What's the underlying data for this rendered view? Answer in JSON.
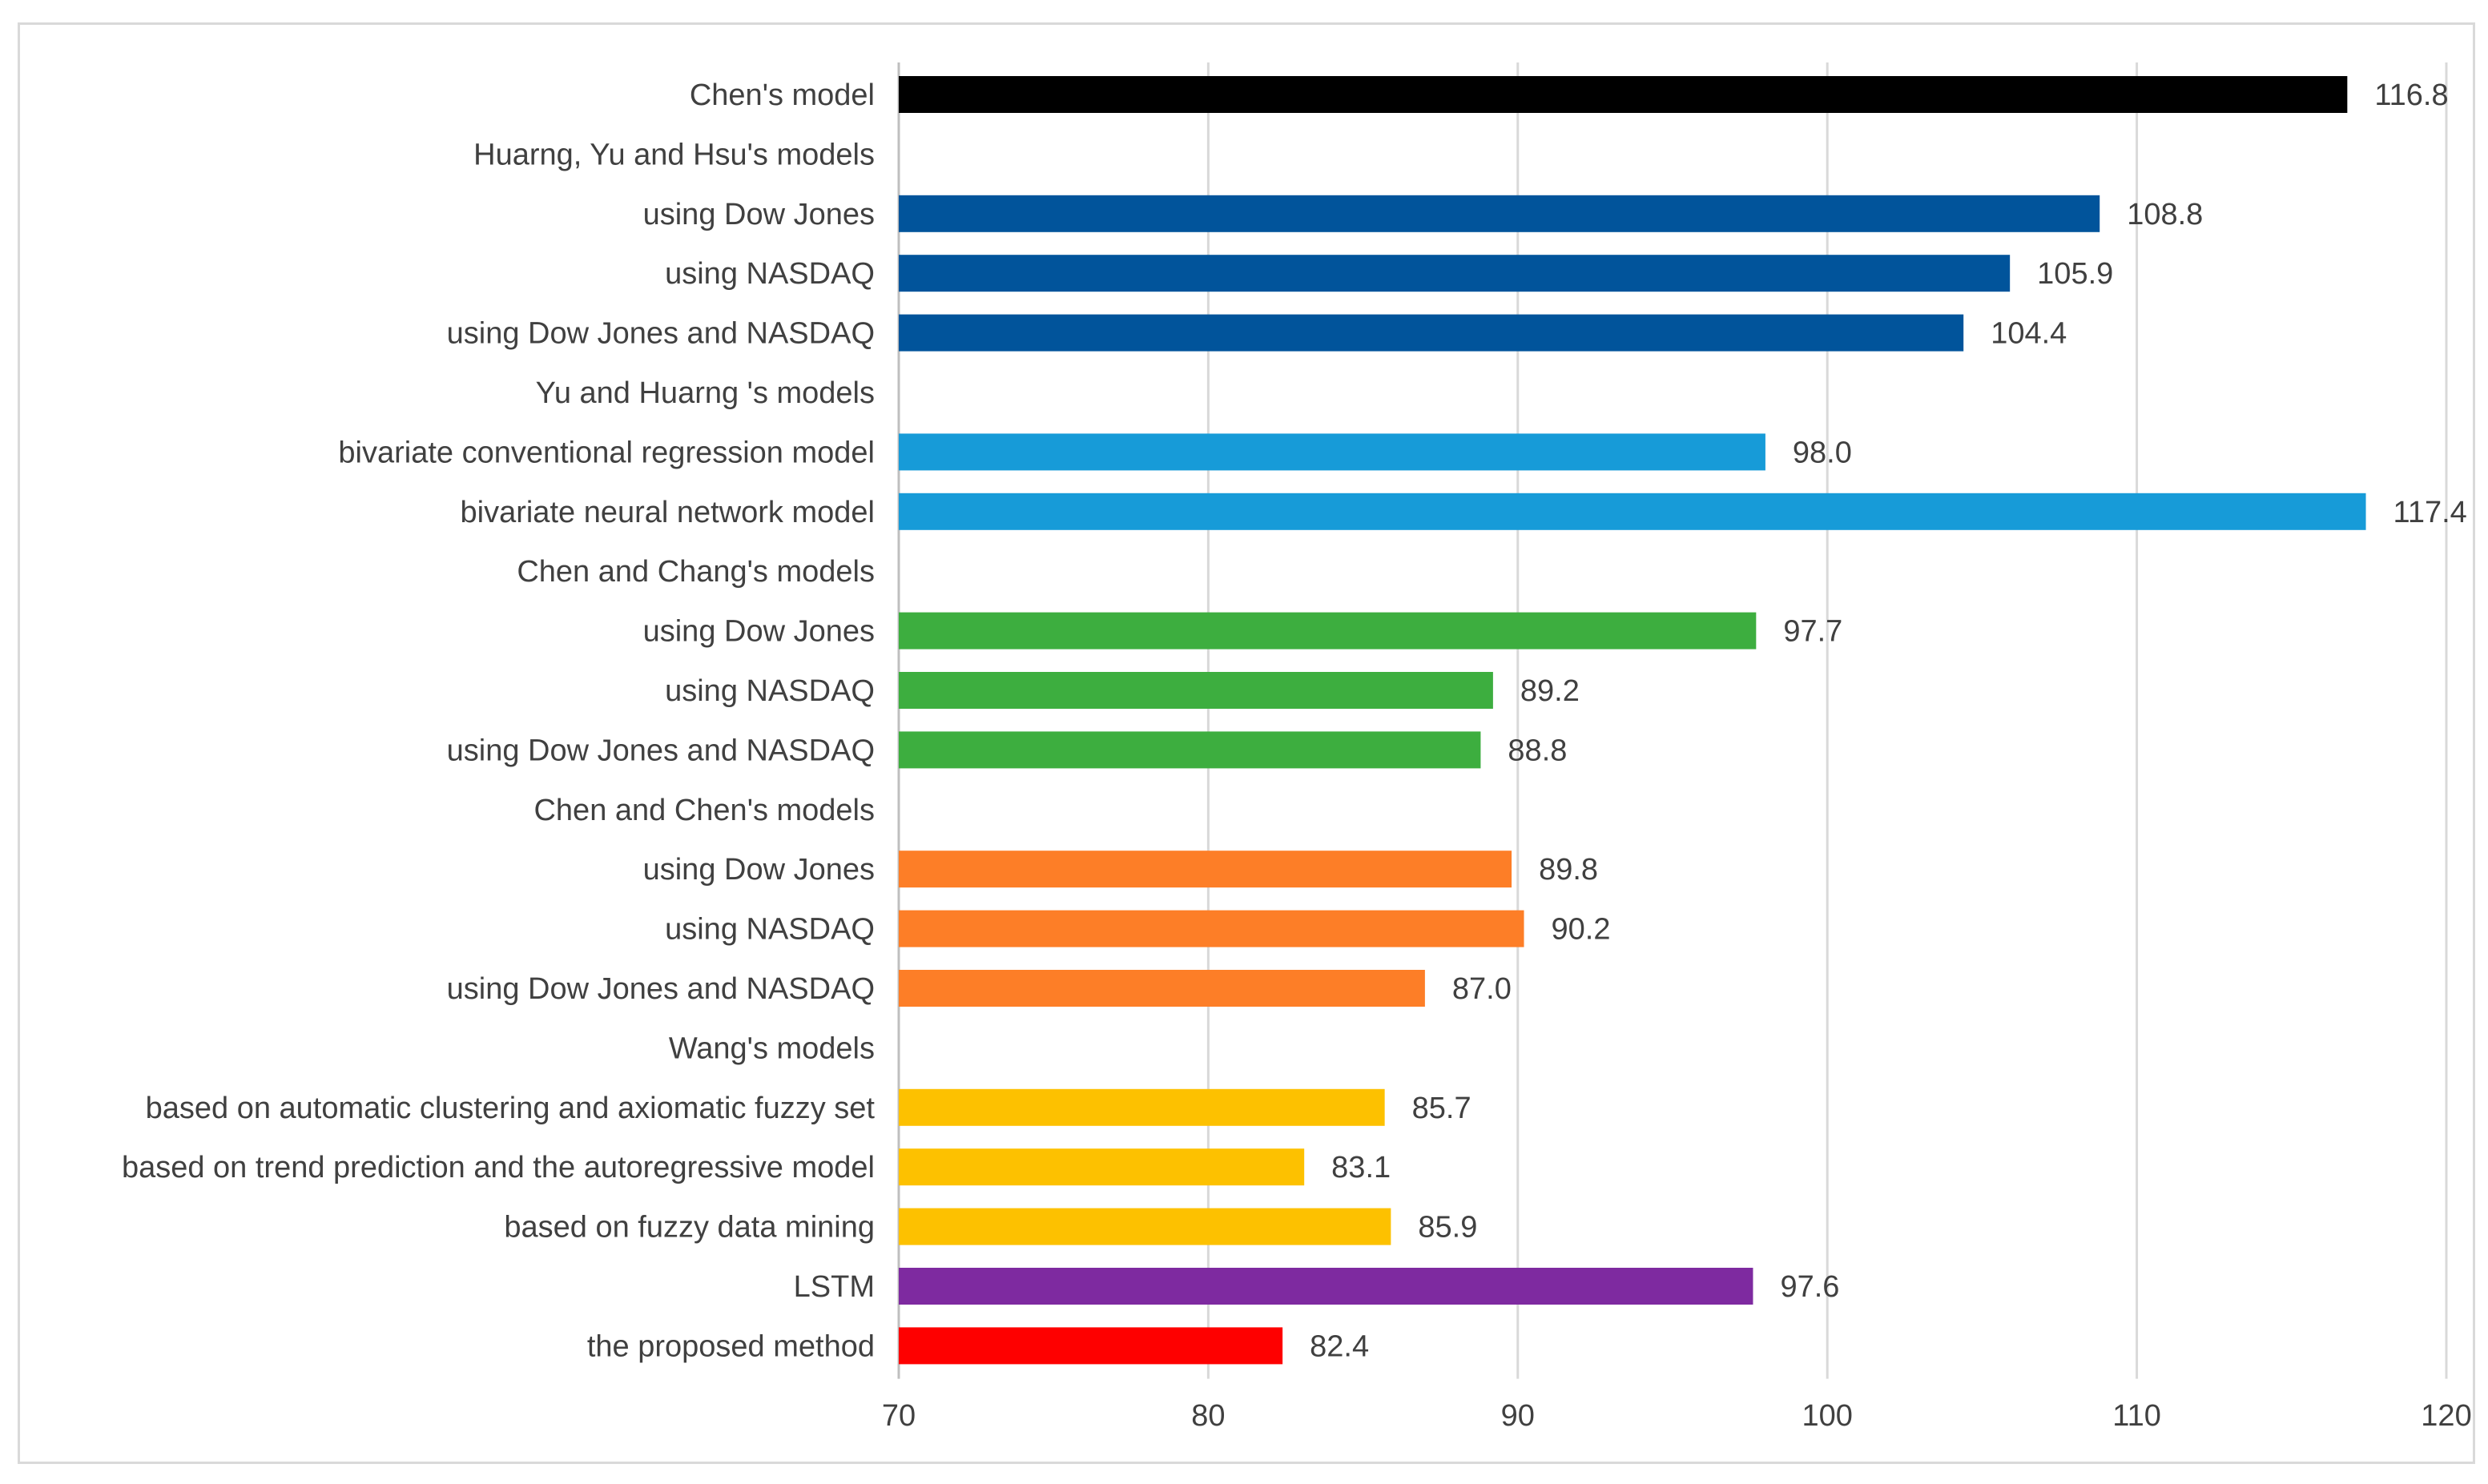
{
  "chart_data": {
    "type": "bar",
    "orientation": "horizontal",
    "title": "",
    "xlabel": "",
    "ylabel": "",
    "xlim": [
      70,
      120
    ],
    "x_ticks": [
      70,
      80,
      90,
      100,
      110,
      120
    ],
    "grid": true,
    "legend": "none",
    "categories": [
      {
        "label": "Chen's model",
        "value": 116.8,
        "value_label": "116.8",
        "color": "#000000"
      },
      {
        "label": "Huarng, Yu and Hsu's models",
        "value": null,
        "value_label": null,
        "color": null
      },
      {
        "label": "using Dow Jones",
        "value": 108.8,
        "value_label": "108.8",
        "color": "#01549B"
      },
      {
        "label": "using NASDAQ",
        "value": 105.9,
        "value_label": "105.9",
        "color": "#01549B"
      },
      {
        "label": "using Dow Jones and NASDAQ",
        "value": 104.4,
        "value_label": "104.4",
        "color": "#01549B"
      },
      {
        "label": "Yu and Huarng 's models",
        "value": null,
        "value_label": null,
        "color": null
      },
      {
        "label": "bivariate conventional regression model",
        "value": 98.0,
        "value_label": "98.0",
        "color": "#179BD8"
      },
      {
        "label": "bivariate neural network model",
        "value": 117.4,
        "value_label": "117.4",
        "color": "#179BD8"
      },
      {
        "label": "Chen and Chang's models",
        "value": null,
        "value_label": null,
        "color": null
      },
      {
        "label": "using Dow Jones",
        "value": 97.7,
        "value_label": "97.7",
        "color": "#3DAE3F"
      },
      {
        "label": "using NASDAQ",
        "value": 89.2,
        "value_label": "89.2",
        "color": "#3DAE3F"
      },
      {
        "label": "using Dow Jones and NASDAQ",
        "value": 88.8,
        "value_label": "88.8",
        "color": "#3DAE3F"
      },
      {
        "label": "Chen and Chen's models",
        "value": null,
        "value_label": null,
        "color": null
      },
      {
        "label": "using Dow Jones",
        "value": 89.8,
        "value_label": "89.8",
        "color": "#FD7E27"
      },
      {
        "label": "using NASDAQ",
        "value": 90.2,
        "value_label": "90.2",
        "color": "#FD7E27"
      },
      {
        "label": "using Dow Jones and NASDAQ",
        "value": 87.0,
        "value_label": "87.0",
        "color": "#FD7E27"
      },
      {
        "label": "Wang's models",
        "value": null,
        "value_label": null,
        "color": null
      },
      {
        "label": "based on automatic clustering and axiomatic fuzzy set",
        "value": 85.7,
        "value_label": "85.7",
        "color": "#FDC100"
      },
      {
        "label": "based on trend prediction and the autoregressive model",
        "value": 83.1,
        "value_label": "83.1",
        "color": "#FDC100"
      },
      {
        "label": "based on fuzzy data mining",
        "value": 85.9,
        "value_label": "85.9",
        "color": "#FDC100"
      },
      {
        "label": "LSTM",
        "value": 97.6,
        "value_label": "97.6",
        "color": "#7E2AA0"
      },
      {
        "label": "the proposed method",
        "value": 82.4,
        "value_label": "82.4",
        "color": "#FE0000"
      }
    ]
  },
  "style": {
    "grid_color": "#d9d9d9",
    "axis_color": "#bfbfbf",
    "text_color": "#404040"
  }
}
